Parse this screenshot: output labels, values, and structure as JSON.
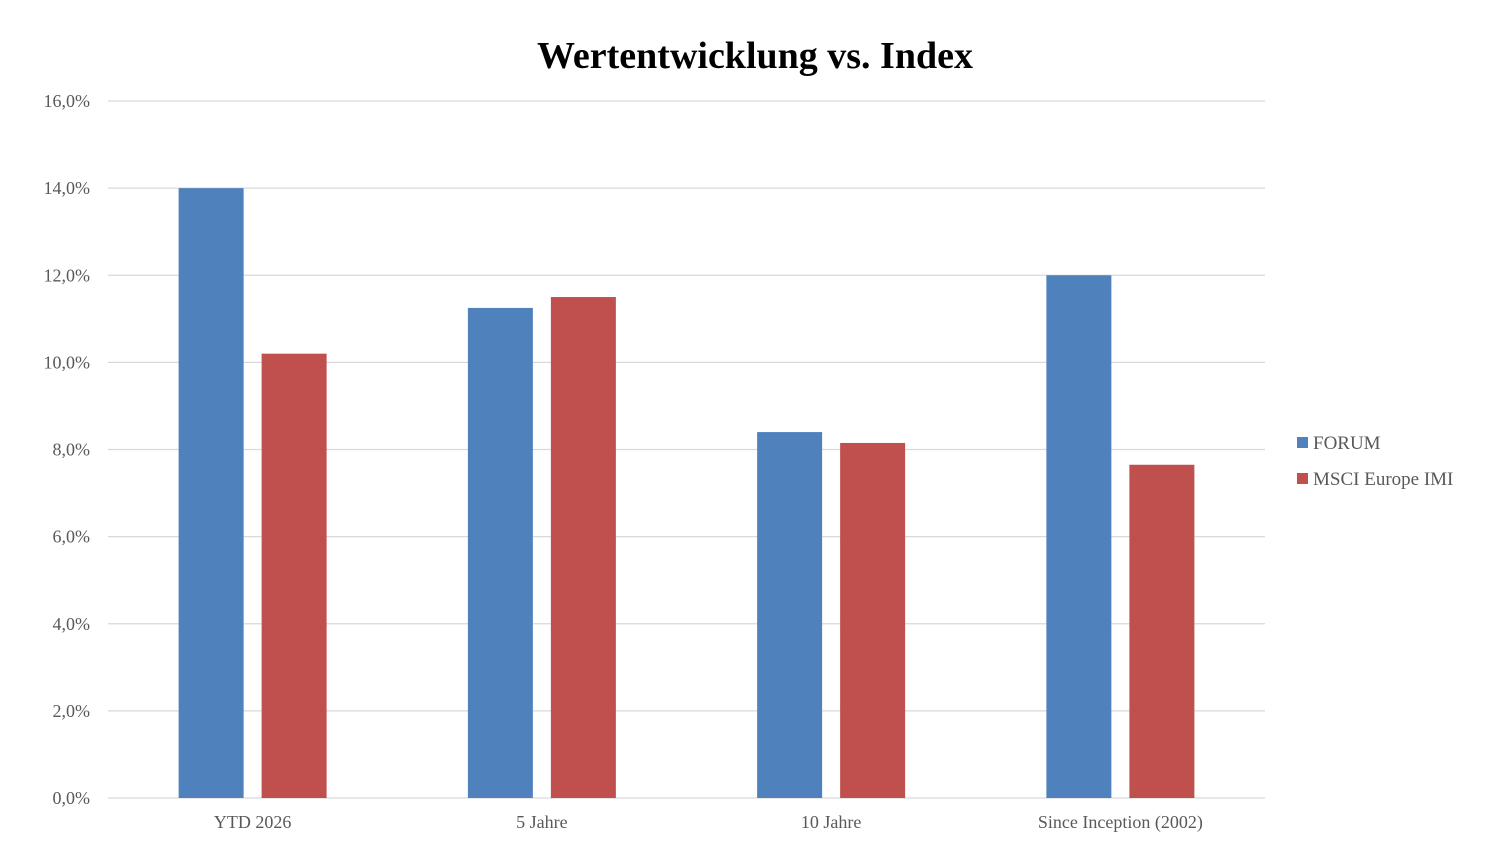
{
  "chart_data": {
    "type": "bar",
    "title": "Wertentwicklung vs. Index",
    "xlabel": "",
    "ylabel": "",
    "categories": [
      "YTD 2026",
      "5 Jahre",
      "10 Jahre",
      "Since Inception (2002)"
    ],
    "series": [
      {
        "name": "FORUM",
        "values": [
          14.0,
          11.25,
          8.4,
          12.0
        ],
        "color": "#4F81BD"
      },
      {
        "name": "MSCI Europe IMI",
        "values": [
          10.2,
          11.5,
          8.15,
          7.65
        ],
        "color": "#C0504D"
      }
    ],
    "ylim": [
      0,
      16
    ],
    "yticks": [
      0,
      2,
      4,
      6,
      8,
      10,
      12,
      14,
      16
    ],
    "ytick_labels": [
      "0,0%",
      "2,0%",
      "4,0%",
      "6,0%",
      "8,0%",
      "10,0%",
      "12,0%",
      "14,0%",
      "16,0%"
    ],
    "grid": true,
    "legend_position": "right",
    "gridline_color": "#D9D9D9"
  }
}
